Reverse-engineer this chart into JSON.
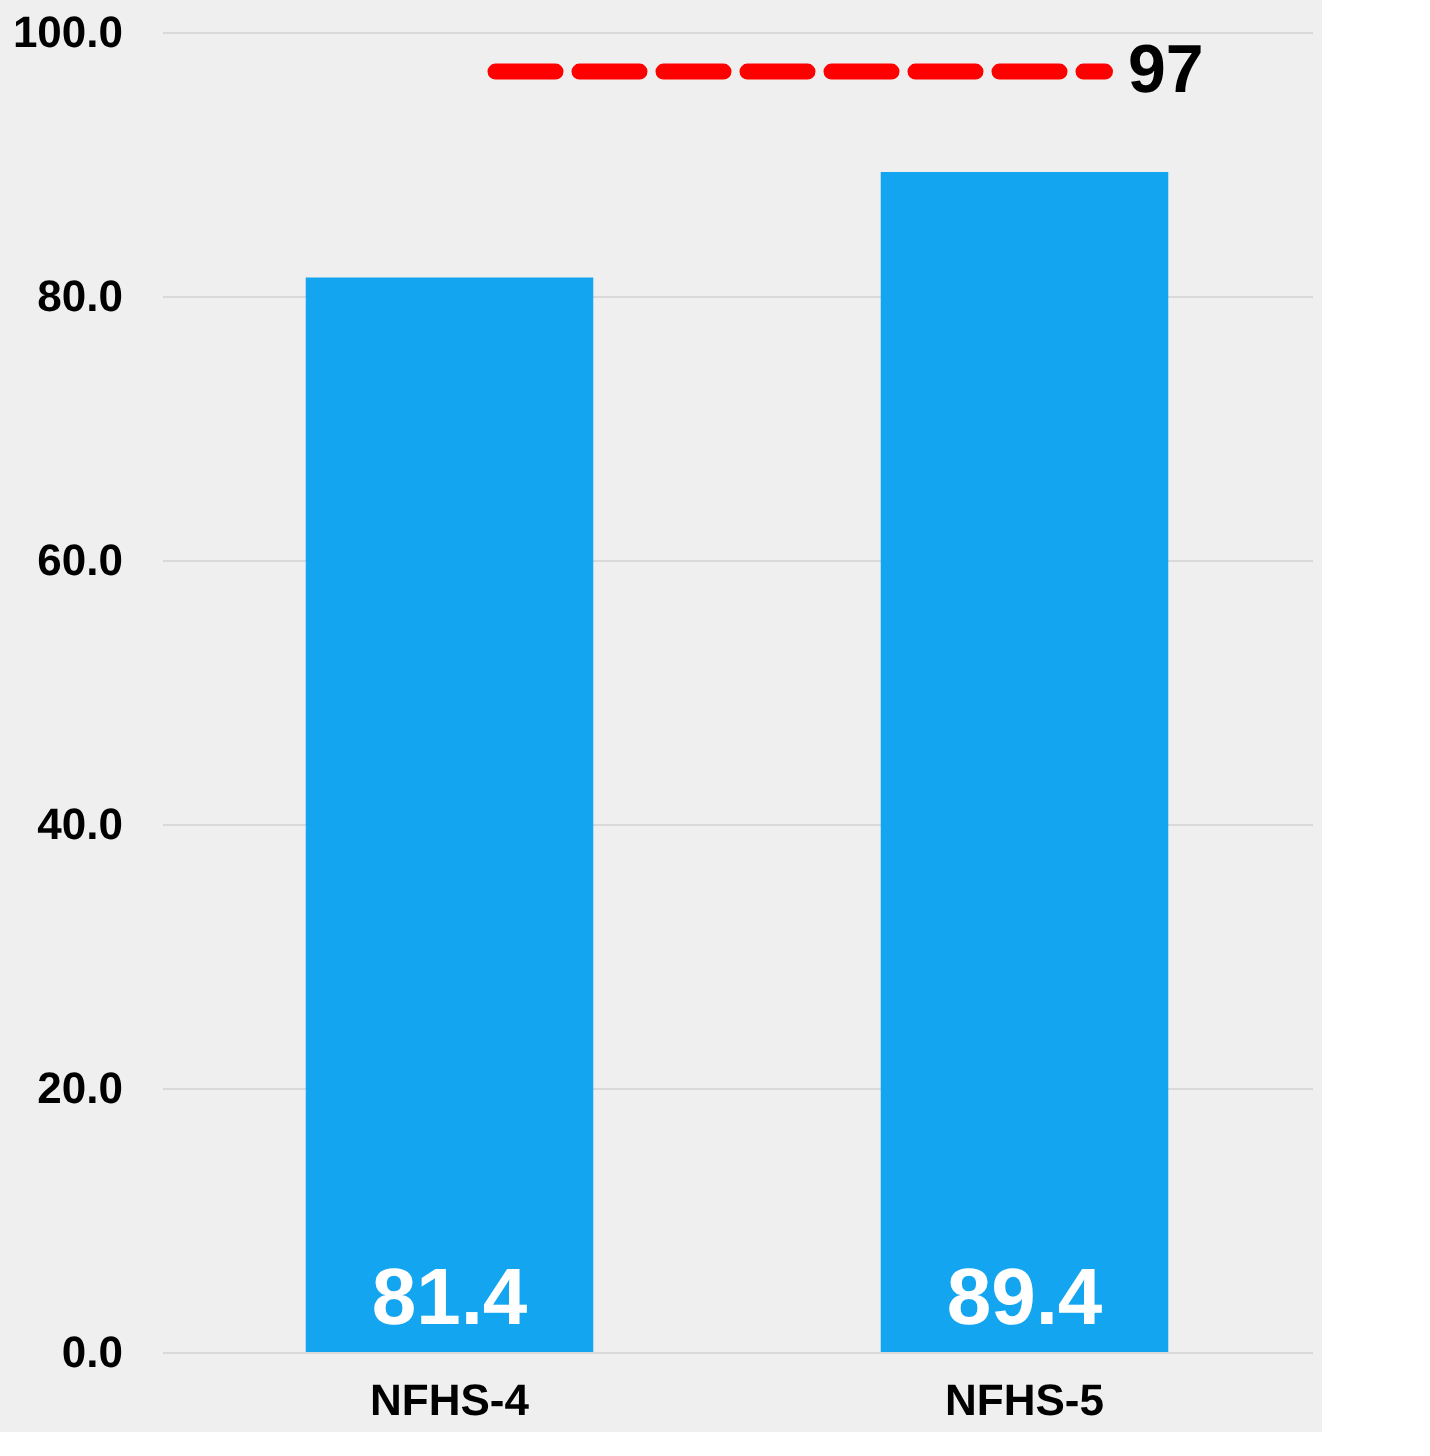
{
  "chart_data": {
    "type": "bar",
    "categories": [
      "NFHS-4",
      "NFHS-5"
    ],
    "values": [
      81.4,
      89.4
    ],
    "color": "#14a5f0",
    "data_labels": true,
    "ylim": [
      0,
      100
    ],
    "yticks": [
      {
        "value": 0,
        "label": "0.0"
      },
      {
        "value": 20,
        "label": "20.0"
      },
      {
        "value": 40,
        "label": "40.0"
      },
      {
        "value": 60,
        "label": "60.0"
      },
      {
        "value": 80,
        "label": "80.0"
      },
      {
        "value": 100,
        "label": "100.0"
      }
    ],
    "grid": "y",
    "ref_lines": [
      {
        "axis": "y",
        "value": 97,
        "label": "97",
        "color": "#ff0000",
        "line_style": "dashed"
      }
    ]
  }
}
